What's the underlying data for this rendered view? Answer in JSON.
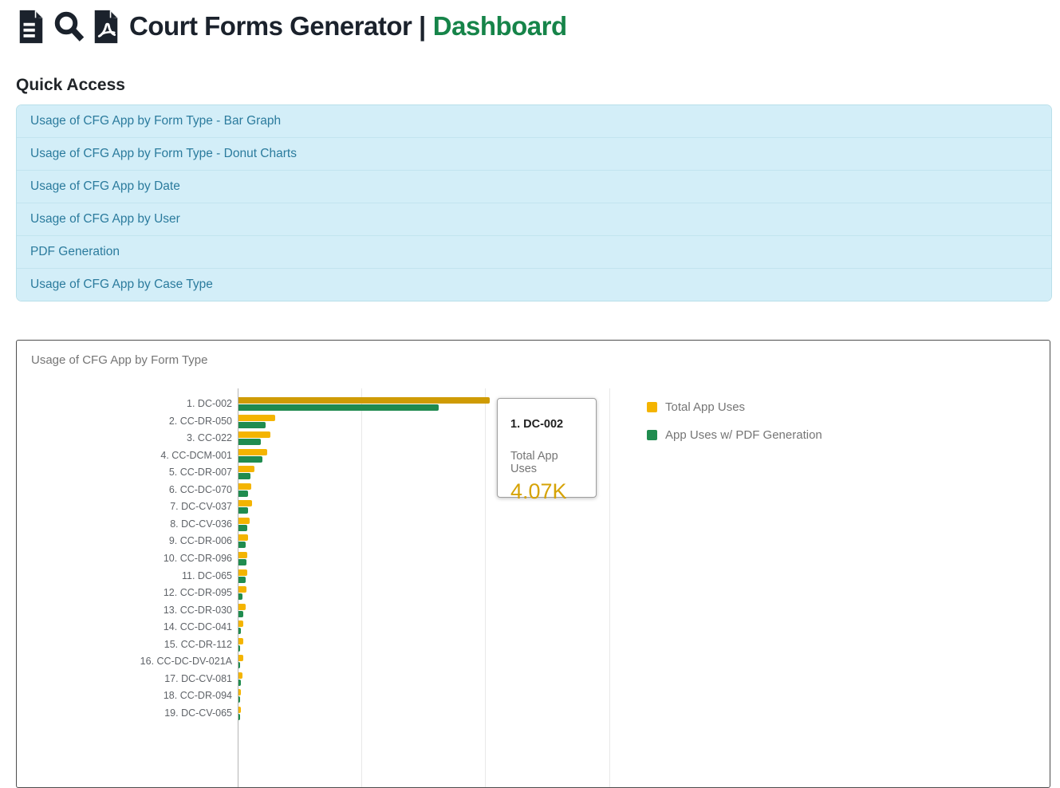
{
  "header": {
    "title": "Court Forms Generator |",
    "title_suffix": "Dashboard",
    "title_color": "#1b222c",
    "accent_green": "#168449",
    "icons": [
      "document-icon",
      "search-icon",
      "pdf-icon"
    ]
  },
  "quick_access": {
    "heading": "Quick Access",
    "item_bg": "#d3eef8",
    "item_text_color": "#2b7b9d",
    "items": [
      "Usage of CFG App by Form Type - Bar Graph",
      "Usage of CFG App by Form Type - Donut Charts",
      "Usage of CFG App by Date",
      "Usage of CFG App by User",
      "PDF Generation",
      "Usage of CFG App by Case Type"
    ]
  },
  "chart_card": {
    "title": "Usage of CFG App by Form Type"
  },
  "tooltip": {
    "title": "1. DC-002",
    "label": "Total App Uses",
    "value": "4.07K",
    "value_color": "#d6a306"
  },
  "chart_data": {
    "type": "bar",
    "orientation": "horizontal",
    "title": "Usage of CFG App by Form Type",
    "categories": [
      "1. DC-002",
      "2. CC-DR-050",
      "3. CC-022",
      "4. CC-DCM-001",
      "5. CC-DR-007",
      "6. CC-DC-070",
      "7. DC-CV-037",
      "8. DC-CV-036",
      "9. CC-DR-006",
      "10. CC-DR-096",
      "11. DC-065",
      "12. CC-DR-095",
      "13. CC-DR-030",
      "14. CC-DC-041",
      "15. CC-DR-112",
      "16. CC-DC-DV-021A",
      "17. DC-CV-081",
      "18. CC-DR-094",
      "19. DC-CV-065"
    ],
    "series": [
      {
        "name": "Total App Uses",
        "color": "#f4b400",
        "values": [
          4070,
          590,
          515,
          465,
          255,
          205,
          218,
          180,
          155,
          142,
          138,
          126,
          114,
          82,
          76,
          74,
          66,
          36,
          34
        ]
      },
      {
        "name": "App Uses w/ PDF Generation",
        "color": "#208c4f",
        "values": [
          3240,
          435,
          362,
          386,
          196,
          152,
          158,
          138,
          116,
          124,
          112,
          66,
          82,
          42,
          32,
          30,
          44,
          22,
          26
        ]
      }
    ],
    "highlight": {
      "row": 0,
      "colors": [
        "#cf9b04",
        "#1f8a4f"
      ]
    },
    "x_axis": {
      "min": 0,
      "gridlines_at": [
        0,
        2000,
        4000,
        6000
      ],
      "tick_labels_visible": false
    },
    "grid_on": true,
    "legend_position": "right",
    "legend": [
      {
        "label": "Total App Uses",
        "color": "#f4b400"
      },
      {
        "label": "App Uses w/ PDF Generation",
        "color": "#208c4f"
      }
    ]
  }
}
